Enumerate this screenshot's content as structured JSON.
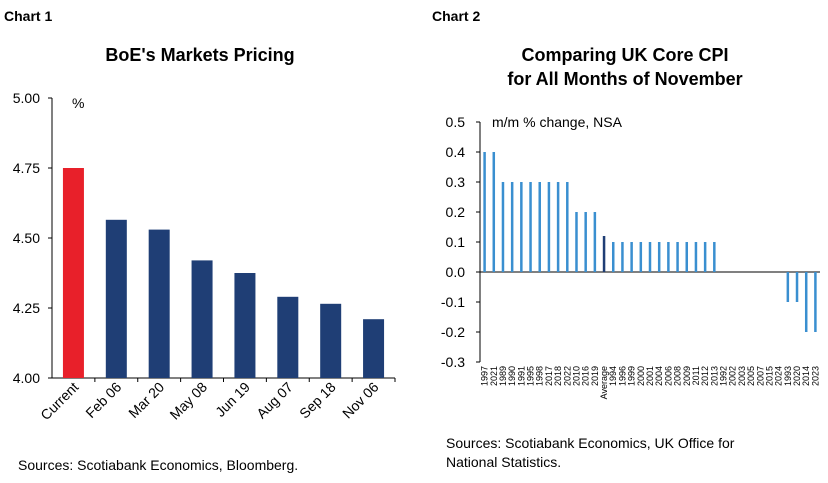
{
  "chart_data": [
    {
      "type": "bar",
      "panel_label": "Chart 1",
      "title": "BoE's Markets Pricing",
      "unit_label": "%",
      "categories": [
        "Current",
        "Feb 06",
        "Mar 20",
        "May 08",
        "Jun 19",
        "Aug 07",
        "Sep 18",
        "Nov 06"
      ],
      "values": [
        4.75,
        4.565,
        4.53,
        4.42,
        4.375,
        4.29,
        4.265,
        4.21
      ],
      "ylim": [
        4.0,
        5.0
      ],
      "yticks": [
        "4.00",
        "4.25",
        "4.50",
        "4.75",
        "5.00"
      ],
      "ytick_values": [
        4.0,
        4.25,
        4.5,
        4.75,
        5.0
      ],
      "colors": {
        "highlight": "#e8202a",
        "bar": "#1f3e75"
      },
      "highlight_index": 0,
      "grid": false,
      "source": "Sources: Scotiabank Economics, Bloomberg."
    },
    {
      "type": "bar",
      "panel_label": "Chart 2",
      "title_lines": [
        "Comparing UK Core CPI",
        "for All Months of November"
      ],
      "unit_label": "m/m % change, NSA",
      "categories": [
        "1997",
        "2021",
        "1989",
        "1990",
        "1991",
        "1995",
        "1998",
        "2017",
        "2018",
        "2022",
        "2010",
        "2016",
        "2019",
        "Average",
        "1994",
        "1996",
        "1999",
        "2000",
        "2001",
        "2004",
        "2006",
        "2008",
        "2009",
        "2011",
        "2012",
        "2013",
        "1992",
        "2002",
        "2003",
        "2005",
        "2007",
        "2015",
        "2024",
        "1993",
        "2020",
        "2014",
        "2023"
      ],
      "values": [
        0.4,
        0.4,
        0.3,
        0.3,
        0.3,
        0.3,
        0.3,
        0.3,
        0.3,
        0.3,
        0.2,
        0.2,
        0.2,
        0.12,
        0.1,
        0.1,
        0.1,
        0.1,
        0.1,
        0.1,
        0.1,
        0.1,
        0.1,
        0.1,
        0.1,
        0.1,
        0.0,
        0.0,
        0.0,
        0.0,
        0.0,
        0.0,
        0.0,
        -0.1,
        -0.1,
        -0.2,
        -0.2
      ],
      "ylim": [
        -0.3,
        0.5
      ],
      "yticks": [
        "-0.3",
        "-0.2",
        "-0.1",
        "0.0",
        "0.1",
        "0.2",
        "0.3",
        "0.4",
        "0.5"
      ],
      "ytick_values": [
        -0.3,
        -0.2,
        -0.1,
        0.0,
        0.1,
        0.2,
        0.3,
        0.4,
        0.5
      ],
      "colors": {
        "bar": "#3a8fd0",
        "average": "#1f3e75"
      },
      "highlight_index": 13,
      "grid": false,
      "source_lines": [
        "Sources: Scotiabank Economics, UK Office for",
        "National Statistics."
      ]
    }
  ]
}
